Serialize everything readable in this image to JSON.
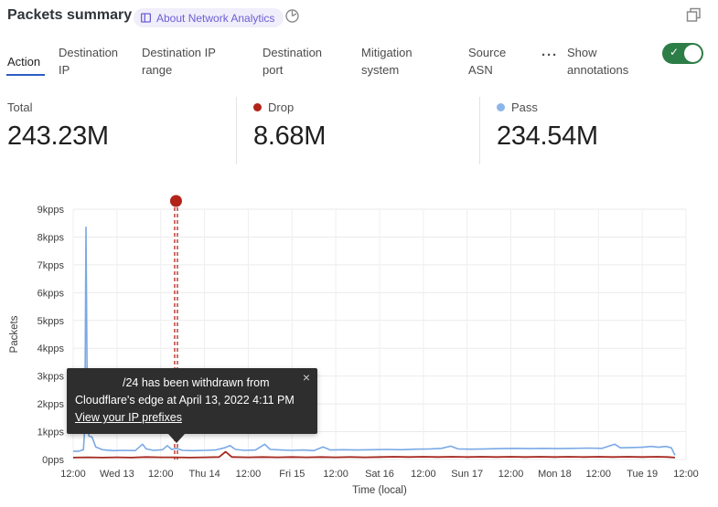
{
  "header": {
    "title": "Packets summary",
    "about_badge": "About Network Analytics"
  },
  "icons": {
    "close": "×",
    "more": "···",
    "check": "✓"
  },
  "colors": {
    "accent_blue": "#2c5cc5",
    "toggle_green": "#2d7d46",
    "badge_purple": "#6b5ed3",
    "drop_red": "#b22318",
    "pass_blue": "#8cb6ea",
    "grid": "#ebebeb",
    "tooltip_bg": "#2e2e2e"
  },
  "tabs": {
    "items": [
      {
        "label": "Action",
        "active": true
      },
      {
        "label": "Destination IP",
        "active": false
      },
      {
        "label": "Destination IP range",
        "active": false
      },
      {
        "label": "Destination port",
        "active": false
      },
      {
        "label": "Mitigation system",
        "active": false
      },
      {
        "label": "Source ASN",
        "active": false
      }
    ],
    "show_annotations_label": "Show annotations",
    "annotations_on": true
  },
  "stats": {
    "items": [
      {
        "label": "Total",
        "value": "243.23M",
        "dot_color": null
      },
      {
        "label": "Drop",
        "value": "8.68M",
        "dot_color": "#b22318"
      },
      {
        "label": "Pass",
        "value": "234.54M",
        "dot_color": "#8cb6ea"
      }
    ]
  },
  "annotation_tooltip": {
    "message": "/24 has been withdrawn from Cloudflare's edge at April 13, 2022 4:11 PM",
    "link": "View your IP prefixes"
  },
  "chart_data": {
    "type": "line",
    "title": "Packets summary",
    "ylabel": "Packets",
    "xlabel": "Time (local)",
    "ylim_kpps": [
      0,
      9
    ],
    "y_tick_labels": [
      "9kpps",
      "8kpps",
      "7kpps",
      "6kpps",
      "5kpps",
      "4kpps",
      "3kpps",
      "2kpps",
      "1kpps",
      "0pps"
    ],
    "x_tick_labels": [
      "12:00",
      "Wed 13",
      "12:00",
      "Thu 14",
      "12:00",
      "Fri 15",
      "12:00",
      "Sat 16",
      "12:00",
      "Sun 17",
      "12:00",
      "Mon 18",
      "12:00",
      "Tue 19",
      "12:00"
    ],
    "x_range_hours": [
      0,
      168
    ],
    "grid": true,
    "legend": "shown as stat tiles above chart",
    "series": [
      {
        "name": "Pass",
        "color": "#7aa9e6",
        "width": 1.6,
        "points_h_kpps": [
          [
            0,
            0.3
          ],
          [
            1.5,
            0.3
          ],
          [
            2.8,
            0.35
          ],
          [
            3.2,
            1.2
          ],
          [
            3.5,
            8.35
          ],
          [
            3.9,
            1.4
          ],
          [
            4.3,
            0.85
          ],
          [
            5.2,
            0.8
          ],
          [
            6.2,
            0.45
          ],
          [
            8,
            0.35
          ],
          [
            11,
            0.32
          ],
          [
            14,
            0.33
          ],
          [
            17,
            0.32
          ],
          [
            19,
            0.55
          ],
          [
            20,
            0.38
          ],
          [
            22,
            0.33
          ],
          [
            24.5,
            0.35
          ],
          [
            25.8,
            0.5
          ],
          [
            27,
            0.36
          ],
          [
            28.2,
            0.4
          ],
          [
            30,
            0.33
          ],
          [
            33,
            0.32
          ],
          [
            36,
            0.33
          ],
          [
            39,
            0.34
          ],
          [
            41.5,
            0.42
          ],
          [
            43,
            0.5
          ],
          [
            44.5,
            0.36
          ],
          [
            47,
            0.33
          ],
          [
            50,
            0.34
          ],
          [
            52.5,
            0.55
          ],
          [
            54,
            0.36
          ],
          [
            57,
            0.34
          ],
          [
            60,
            0.33
          ],
          [
            63,
            0.34
          ],
          [
            66,
            0.32
          ],
          [
            68.5,
            0.45
          ],
          [
            70.5,
            0.34
          ],
          [
            74,
            0.35
          ],
          [
            78,
            0.34
          ],
          [
            82,
            0.35
          ],
          [
            86,
            0.36
          ],
          [
            90,
            0.35
          ],
          [
            94,
            0.37
          ],
          [
            98,
            0.38
          ],
          [
            101,
            0.4
          ],
          [
            103.5,
            0.48
          ],
          [
            105.5,
            0.38
          ],
          [
            109,
            0.37
          ],
          [
            113,
            0.38
          ],
          [
            117,
            0.39
          ],
          [
            121,
            0.4
          ],
          [
            125,
            0.39
          ],
          [
            129,
            0.4
          ],
          [
            133,
            0.39
          ],
          [
            137,
            0.4
          ],
          [
            141,
            0.41
          ],
          [
            145,
            0.4
          ],
          [
            148.5,
            0.55
          ],
          [
            150,
            0.42
          ],
          [
            153,
            0.43
          ],
          [
            156,
            0.44
          ],
          [
            158.5,
            0.47
          ],
          [
            160.5,
            0.44
          ],
          [
            162.5,
            0.47
          ],
          [
            164,
            0.42
          ],
          [
            165,
            0.15
          ]
        ]
      },
      {
        "name": "Drop",
        "color": "#a5291e",
        "width": 1.8,
        "points_h_kpps": [
          [
            0,
            0.07
          ],
          [
            4,
            0.08
          ],
          [
            8,
            0.07
          ],
          [
            12,
            0.08
          ],
          [
            16,
            0.07
          ],
          [
            20,
            0.09
          ],
          [
            24,
            0.08
          ],
          [
            28,
            0.08
          ],
          [
            32,
            0.07
          ],
          [
            36,
            0.08
          ],
          [
            40,
            0.09
          ],
          [
            41.8,
            0.28
          ],
          [
            43.5,
            0.09
          ],
          [
            48,
            0.08
          ],
          [
            52,
            0.09
          ],
          [
            56,
            0.08
          ],
          [
            60,
            0.09
          ],
          [
            64,
            0.08
          ],
          [
            68,
            0.09
          ],
          [
            72,
            0.08
          ],
          [
            76,
            0.09
          ],
          [
            80,
            0.08
          ],
          [
            84,
            0.09
          ],
          [
            88,
            0.1
          ],
          [
            92,
            0.09
          ],
          [
            96,
            0.1
          ],
          [
            100,
            0.09
          ],
          [
            104,
            0.1
          ],
          [
            108,
            0.09
          ],
          [
            112,
            0.1
          ],
          [
            116,
            0.09
          ],
          [
            120,
            0.1
          ],
          [
            124,
            0.09
          ],
          [
            128,
            0.1
          ],
          [
            132,
            0.09
          ],
          [
            136,
            0.1
          ],
          [
            140,
            0.09
          ],
          [
            144,
            0.1
          ],
          [
            148,
            0.09
          ],
          [
            152,
            0.1
          ],
          [
            156,
            0.09
          ],
          [
            160,
            0.1
          ],
          [
            163,
            0.09
          ],
          [
            165,
            0.07
          ]
        ]
      }
    ],
    "annotation_marker": {
      "hours": 28.2,
      "time_label": "April 13, 2022 4:11 PM",
      "color": "#b22318",
      "style": "double-dashed-vertical-with-dot"
    }
  }
}
